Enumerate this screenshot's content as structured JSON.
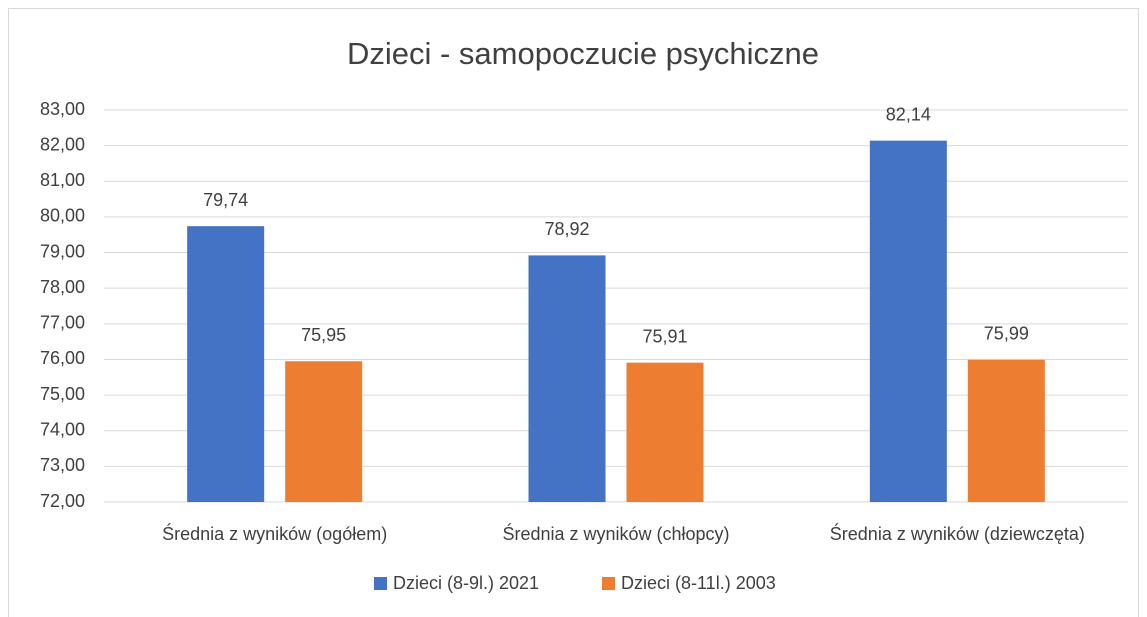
{
  "chart_data": {
    "type": "bar",
    "title": "Dzieci - samopoczucie psychiczne",
    "categories": [
      "Średnia z wyników (ogółem)",
      "Średnia z wyników (chłopcy)",
      "Średnia z wyników (dziewczęta)"
    ],
    "series": [
      {
        "name": "Dzieci (8-9l.) 2021",
        "color": "#4472c4",
        "values": [
          79.74,
          78.92,
          82.14
        ],
        "value_labels": [
          "79,74",
          "78,92",
          "82,14"
        ]
      },
      {
        "name": "Dzieci (8-11l.) 2003",
        "color": "#ed7d31",
        "values": [
          75.95,
          75.91,
          75.99
        ],
        "value_labels": [
          "75,95",
          "75,91",
          "75,99"
        ]
      }
    ],
    "ylim": [
      72,
      83
    ],
    "yticks": [
      {
        "value": 72,
        "label": "72,00"
      },
      {
        "value": 73,
        "label": "73,00"
      },
      {
        "value": 74,
        "label": "74,00"
      },
      {
        "value": 75,
        "label": "75,00"
      },
      {
        "value": 76,
        "label": "76,00"
      },
      {
        "value": 77,
        "label": "77,00"
      },
      {
        "value": 78,
        "label": "78,00"
      },
      {
        "value": 79,
        "label": "79,00"
      },
      {
        "value": 80,
        "label": "80,00"
      },
      {
        "value": 81,
        "label": "81,00"
      },
      {
        "value": 82,
        "label": "82,00"
      },
      {
        "value": 83,
        "label": "83,00"
      }
    ],
    "grid": true,
    "legend": "bottom"
  }
}
